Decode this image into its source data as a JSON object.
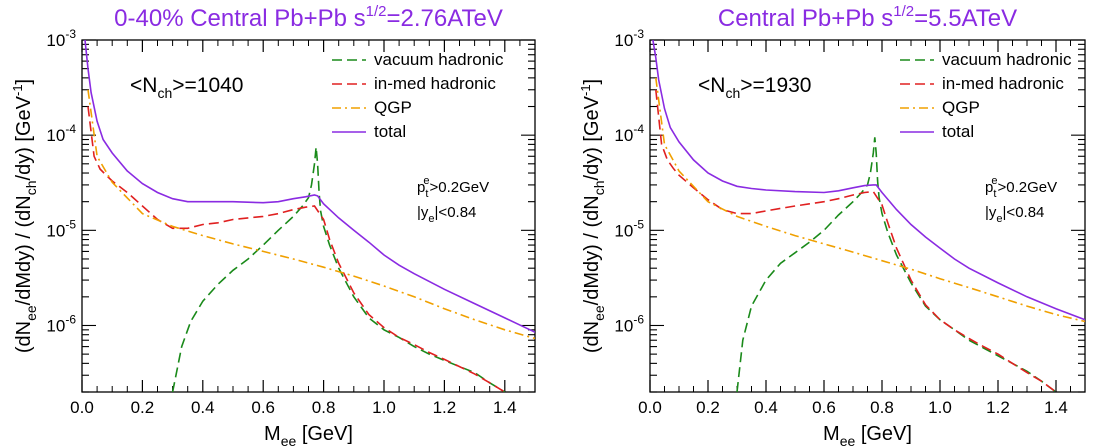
{
  "colors": {
    "vacuum": "#1a8a1a",
    "inmed": "#e02020",
    "qgp": "#f0a000",
    "total": "#8a2be2",
    "title": "#8a2be2"
  },
  "chart_data": [
    {
      "type": "line",
      "title_pre": "0-40% Central Pb+Pb  s",
      "title_sup": "1/2",
      "title_post": "=2.76ATeV",
      "xlabel_main": "M",
      "xlabel_sub": "ee",
      "xlabel_unit": " [GeV]",
      "ylabel_text": "(dN_ee/dMdy) / (dN_ch/dy)  [GeV^-1]",
      "xlim": [
        0.0,
        1.5
      ],
      "ylim": [
        2e-07,
        0.001
      ],
      "yscale": "log",
      "x_ticks": [
        "0.0",
        "0.2",
        "0.4",
        "0.6",
        "0.8",
        "1.0",
        "1.2",
        "1.4"
      ],
      "y_ticks": [
        "10^-6",
        "10^-5",
        "10^-4",
        "10^-3"
      ],
      "annotation_nch": {
        "pre": "<N",
        "sub": "ch",
        "post": ">=1040"
      },
      "annotation_pt": {
        "main": "p",
        "sub": "t",
        "sup": "e",
        "post": ">0.2GeV"
      },
      "annotation_y": {
        "main": "|y",
        "sub": "e",
        "post": "|<0.84"
      },
      "legend_position": "top-right",
      "series": [
        {
          "name": "vacuum hadronic",
          "style": "dashed",
          "colorKey": "vacuum",
          "x": [
            0.3,
            0.33,
            0.36,
            0.4,
            0.45,
            0.5,
            0.55,
            0.6,
            0.65,
            0.7,
            0.73,
            0.75,
            0.76,
            0.77,
            0.775,
            0.78,
            0.785,
            0.79,
            0.8,
            0.82,
            0.85,
            0.9,
            0.95,
            1.0,
            1.05,
            1.1,
            1.15,
            1.2,
            1.25,
            1.3,
            1.35,
            1.4
          ],
          "y": [
            2e-07,
            6e-07,
            1.1e-06,
            1.8e-06,
            2.7e-06,
            3.8e-06,
            5e-06,
            7e-06,
            1e-05,
            1.4e-05,
            1.8e-05,
            2.2e-05,
            3e-05,
            5e-05,
            7.5e-05,
            5e-05,
            2.5e-05,
            1.6e-05,
            1.1e-05,
            7e-06,
            4e-06,
            2e-06,
            1.2e-06,
            9e-07,
            7.5e-07,
            6e-07,
            5e-07,
            4.3e-07,
            3.7e-07,
            3.2e-07,
            2.5e-07,
            2e-07
          ]
        },
        {
          "name": "in-med hadronic",
          "style": "dashed",
          "colorKey": "inmed",
          "x": [
            0.02,
            0.04,
            0.06,
            0.08,
            0.1,
            0.15,
            0.2,
            0.25,
            0.3,
            0.35,
            0.4,
            0.45,
            0.5,
            0.55,
            0.6,
            0.65,
            0.7,
            0.74,
            0.77,
            0.8,
            0.82,
            0.85,
            0.9,
            0.95,
            1.0,
            1.05,
            1.1,
            1.15,
            1.2,
            1.25,
            1.3,
            1.35,
            1.4
          ],
          "y": [
            0.0002,
            6e-05,
            4.4e-05,
            3.8e-05,
            3.3e-05,
            2.5e-05,
            1.8e-05,
            1.3e-05,
            1.05e-05,
            1.05e-05,
            1.15e-05,
            1.2e-05,
            1.3e-05,
            1.35e-05,
            1.4e-05,
            1.5e-05,
            1.65e-05,
            1.75e-05,
            1.8e-05,
            1.3e-05,
            8e-06,
            4.5e-06,
            2.2e-06,
            1.3e-06,
            9.5e-07,
            7.5e-07,
            6.3e-07,
            5.2e-07,
            4.4e-07,
            3.7e-07,
            3.1e-07,
            2.5e-07,
            2e-07
          ]
        },
        {
          "name": "QGP",
          "style": "dashdot",
          "colorKey": "qgp",
          "x": [
            0.02,
            0.05,
            0.1,
            0.2,
            0.3,
            0.4,
            0.5,
            0.6,
            0.7,
            0.8,
            0.9,
            1.0,
            1.1,
            1.2,
            1.3,
            1.4,
            1.5
          ],
          "y": [
            0.0003,
            6e-05,
            3.2e-05,
            1.5e-05,
            1.1e-05,
            8.8e-06,
            7.2e-06,
            6e-06,
            5e-06,
            4.1e-06,
            3.3e-06,
            2.6e-06,
            2e-06,
            1.5e-06,
            1.15e-06,
            9e-07,
            7.3e-07
          ]
        },
        {
          "name": "total",
          "style": "solid",
          "colorKey": "total",
          "x": [
            0.01,
            0.02,
            0.03,
            0.05,
            0.07,
            0.1,
            0.15,
            0.2,
            0.25,
            0.3,
            0.35,
            0.4,
            0.5,
            0.6,
            0.65,
            0.7,
            0.74,
            0.77,
            0.78,
            0.8,
            0.85,
            0.9,
            0.95,
            1.0,
            1.05,
            1.1,
            1.2,
            1.3,
            1.4,
            1.5
          ],
          "y": [
            0.001,
            0.0005,
            0.00028,
            0.00014,
            9e-05,
            6.5e-05,
            4.2e-05,
            3.1e-05,
            2.5e-05,
            2.15e-05,
            2e-05,
            2e-05,
            2e-05,
            1.95e-05,
            2e-05,
            2.15e-05,
            2.25e-05,
            2.35e-05,
            2.3e-05,
            1.9e-05,
            1.35e-05,
            1e-05,
            7.5e-06,
            5.5e-06,
            4.3e-06,
            3.5e-06,
            2.4e-06,
            1.7e-06,
            1.2e-06,
            8.5e-07
          ]
        }
      ]
    },
    {
      "type": "line",
      "title_pre": "Central Pb+Pb  s",
      "title_sup": "1/2",
      "title_post": "=5.5ATeV",
      "xlabel_main": "M",
      "xlabel_sub": "ee",
      "xlabel_unit": " [GeV]",
      "ylabel_text": "(dN_ee/dMdy) / (dN_ch/dy)  [GeV^-1]",
      "xlim": [
        0.0,
        1.5
      ],
      "ylim": [
        2e-07,
        0.001
      ],
      "yscale": "log",
      "x_ticks": [
        "0.0",
        "0.2",
        "0.4",
        "0.6",
        "0.8",
        "1.0",
        "1.2",
        "1.4"
      ],
      "y_ticks": [
        "10^-6",
        "10^-5",
        "10^-4",
        "10^-3"
      ],
      "annotation_nch": {
        "pre": "<N",
        "sub": "ch",
        "post": ">=1930"
      },
      "annotation_pt": {
        "main": "p",
        "sub": "t",
        "sup": "e",
        "post": ">0.2GeV"
      },
      "annotation_y": {
        "main": "|y",
        "sub": "e",
        "post": "|<0.84"
      },
      "legend_position": "top-right",
      "series": [
        {
          "name": "vacuum hadronic",
          "style": "dashed",
          "colorKey": "vacuum",
          "x": [
            0.3,
            0.32,
            0.35,
            0.4,
            0.45,
            0.5,
            0.55,
            0.6,
            0.65,
            0.7,
            0.73,
            0.75,
            0.76,
            0.77,
            0.775,
            0.78,
            0.785,
            0.79,
            0.8,
            0.82,
            0.85,
            0.9,
            0.95,
            1.0,
            1.05,
            1.1,
            1.15,
            1.2,
            1.25,
            1.3,
            1.35,
            1.4
          ],
          "y": [
            2e-07,
            7e-07,
            1.6e-06,
            3e-06,
            4.5e-06,
            5.8e-06,
            7.5e-06,
            1e-05,
            1.45e-05,
            2e-05,
            2.5e-05,
            3e-05,
            4e-05,
            6.5e-05,
            9.5e-05,
            6.5e-05,
            3.3e-05,
            2.2e-05,
            1.5e-05,
            9.5e-06,
            5.5e-06,
            2.8e-06,
            1.6e-06,
            1.15e-06,
            9e-07,
            7e-07,
            5.8e-07,
            4.8e-07,
            4e-07,
            3.3e-07,
            2.6e-07,
            2e-07
          ]
        },
        {
          "name": "in-med hadronic",
          "style": "dashed",
          "colorKey": "inmed",
          "x": [
            0.02,
            0.04,
            0.06,
            0.08,
            0.1,
            0.15,
            0.2,
            0.25,
            0.3,
            0.35,
            0.4,
            0.45,
            0.5,
            0.55,
            0.6,
            0.65,
            0.7,
            0.74,
            0.77,
            0.8,
            0.82,
            0.85,
            0.9,
            0.95,
            1.0,
            1.05,
            1.1,
            1.15,
            1.2,
            1.25,
            1.3,
            1.35,
            1.4
          ],
          "y": [
            0.0003,
            8e-05,
            5.5e-05,
            4.5e-05,
            3.8e-05,
            2.8e-05,
            2.1e-05,
            1.65e-05,
            1.5e-05,
            1.5e-05,
            1.6e-05,
            1.7e-05,
            1.8e-05,
            1.9e-05,
            2e-05,
            2.15e-05,
            2.35e-05,
            2.5e-05,
            2.55e-05,
            1.85e-05,
            1.2e-05,
            6.5e-06,
            3e-06,
            1.65e-06,
            1.15e-06,
            9e-07,
            7.3e-07,
            6e-07,
            5e-07,
            4e-07,
            3.2e-07,
            2.6e-07,
            2e-07
          ]
        },
        {
          "name": "QGP",
          "style": "dashdot",
          "colorKey": "qgp",
          "x": [
            0.02,
            0.05,
            0.1,
            0.2,
            0.3,
            0.4,
            0.5,
            0.6,
            0.7,
            0.8,
            0.9,
            1.0,
            1.1,
            1.2,
            1.3,
            1.4,
            1.5
          ],
          "y": [
            0.0004,
            8e-05,
            4.2e-05,
            2e-05,
            1.4e-05,
            1.1e-05,
            8.8e-06,
            7.2e-06,
            5.9e-06,
            4.8e-06,
            3.9e-06,
            3.1e-06,
            2.5e-06,
            2e-06,
            1.6e-06,
            1.3e-06,
            1.1e-06
          ]
        },
        {
          "name": "total",
          "style": "solid",
          "colorKey": "total",
          "x": [
            0.01,
            0.02,
            0.03,
            0.05,
            0.07,
            0.1,
            0.15,
            0.2,
            0.25,
            0.3,
            0.35,
            0.4,
            0.5,
            0.6,
            0.65,
            0.7,
            0.74,
            0.77,
            0.78,
            0.8,
            0.85,
            0.9,
            0.95,
            1.0,
            1.05,
            1.1,
            1.2,
            1.3,
            1.4,
            1.5
          ],
          "y": [
            0.001,
            0.00065,
            0.00038,
            0.00019,
            0.00012,
            8.5e-05,
            5.5e-05,
            4e-05,
            3.3e-05,
            2.9e-05,
            2.75e-05,
            2.65e-05,
            2.55e-05,
            2.5e-05,
            2.6e-05,
            2.8e-05,
            2.95e-05,
            3e-05,
            3e-05,
            2.5e-05,
            1.65e-05,
            1.15e-05,
            8.5e-06,
            6.5e-06,
            5e-06,
            4e-06,
            2.8e-06,
            2e-06,
            1.5e-06,
            1.15e-06
          ]
        }
      ]
    }
  ]
}
